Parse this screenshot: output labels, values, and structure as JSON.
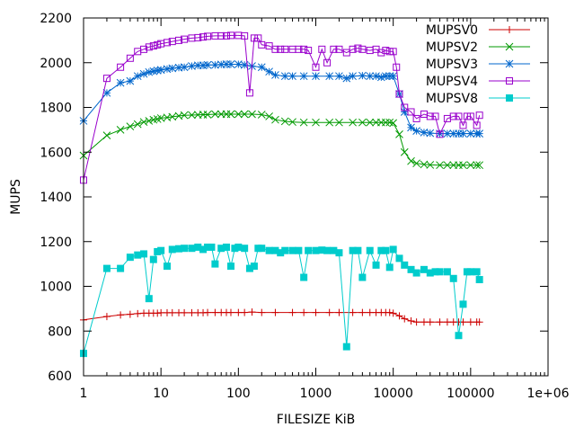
{
  "chart_data": {
    "type": "line",
    "title": "",
    "xlabel": "FILESIZE KiB",
    "ylabel": "MUPS",
    "xscale": "log",
    "xlim": [
      1,
      1000000
    ],
    "ylim": [
      600,
      2200
    ],
    "x_ticks": [
      1,
      10,
      100,
      1000,
      10000,
      100000,
      1000000
    ],
    "x_tick_labels": [
      "1",
      "10",
      "100",
      "1000",
      "10000",
      "100000",
      "1e+06"
    ],
    "y_ticks": [
      600,
      800,
      1000,
      1200,
      1400,
      1600,
      1800,
      2000,
      2200
    ],
    "y_tick_labels": [
      "600",
      "800",
      "1000",
      "1200",
      "1400",
      "1600",
      "1800",
      "2000",
      "2200"
    ],
    "grid": false,
    "legend_position": "top-right",
    "series": [
      {
        "name": "MUPSV0",
        "color": "#cc0000",
        "marker": "plus",
        "x": [
          1,
          2,
          3,
          4,
          5,
          6,
          7,
          8,
          9,
          10,
          12,
          14,
          17,
          20,
          25,
          30,
          35,
          40,
          50,
          60,
          70,
          80,
          100,
          120,
          150,
          200,
          300,
          500,
          700,
          1000,
          1500,
          2000,
          3000,
          4000,
          5000,
          6000,
          7000,
          8000,
          9000,
          10000,
          12000,
          14000,
          17000,
          20000,
          25000,
          30000,
          40000,
          50000,
          60000,
          70000,
          80000,
          100000,
          120000,
          130000
        ],
        "y": [
          850,
          865,
          872,
          875,
          878,
          880,
          880,
          880,
          880,
          882,
          882,
          882,
          882,
          882,
          882,
          882,
          882,
          883,
          883,
          883,
          883,
          883,
          883,
          883,
          885,
          883,
          883,
          883,
          883,
          883,
          883,
          883,
          883,
          883,
          883,
          883,
          883,
          883,
          883,
          880,
          868,
          855,
          845,
          840,
          840,
          840,
          840,
          840,
          840,
          840,
          840,
          840,
          840,
          840
        ]
      },
      {
        "name": "MUPSV2",
        "color": "#009900",
        "marker": "cross",
        "x": [
          1,
          2,
          3,
          4,
          5,
          6,
          7,
          8,
          9,
          10,
          12,
          14,
          17,
          20,
          25,
          30,
          35,
          40,
          50,
          60,
          70,
          80,
          100,
          120,
          150,
          200,
          250,
          300,
          400,
          500,
          700,
          1000,
          1500,
          2000,
          3000,
          4000,
          5000,
          6000,
          7000,
          8000,
          9000,
          10000,
          12000,
          14000,
          17000,
          20000,
          25000,
          30000,
          40000,
          50000,
          60000,
          70000,
          80000,
          100000,
          120000,
          130000
        ],
        "y": [
          1585,
          1675,
          1700,
          1715,
          1725,
          1735,
          1740,
          1745,
          1748,
          1752,
          1755,
          1758,
          1762,
          1765,
          1766,
          1767,
          1768,
          1768,
          1770,
          1770,
          1770,
          1770,
          1770,
          1770,
          1770,
          1768,
          1760,
          1745,
          1738,
          1735,
          1733,
          1733,
          1733,
          1733,
          1733,
          1733,
          1733,
          1733,
          1733,
          1733,
          1733,
          1730,
          1680,
          1600,
          1560,
          1550,
          1545,
          1543,
          1542,
          1542,
          1542,
          1542,
          1542,
          1542,
          1542,
          1542
        ]
      },
      {
        "name": "MUPSV3",
        "color": "#0066cc",
        "marker": "star",
        "x": [
          1,
          2,
          3,
          4,
          5,
          6,
          7,
          8,
          9,
          10,
          12,
          14,
          17,
          20,
          25,
          30,
          35,
          40,
          50,
          60,
          70,
          80,
          100,
          120,
          150,
          200,
          250,
          300,
          400,
          500,
          700,
          1000,
          1500,
          2000,
          2500,
          3000,
          4000,
          5000,
          6000,
          7000,
          8000,
          9000,
          10000,
          12000,
          14000,
          17000,
          20000,
          25000,
          30000,
          40000,
          50000,
          60000,
          70000,
          80000,
          100000,
          120000,
          130000
        ],
        "y": [
          1740,
          1865,
          1910,
          1918,
          1940,
          1950,
          1958,
          1962,
          1965,
          1968,
          1972,
          1975,
          1978,
          1980,
          1985,
          1988,
          1988,
          1990,
          1990,
          1992,
          1993,
          1993,
          1993,
          1990,
          1985,
          1980,
          1960,
          1945,
          1940,
          1940,
          1940,
          1940,
          1940,
          1940,
          1930,
          1940,
          1942,
          1940,
          1940,
          1935,
          1940,
          1940,
          1940,
          1860,
          1780,
          1710,
          1695,
          1688,
          1685,
          1683,
          1683,
          1683,
          1683,
          1683,
          1683,
          1683,
          1683
        ]
      },
      {
        "name": "MUPSV4",
        "color": "#9900cc",
        "marker": "square",
        "x": [
          1,
          2,
          3,
          4,
          5,
          6,
          7,
          8,
          9,
          10,
          12,
          14,
          17,
          20,
          25,
          30,
          35,
          40,
          50,
          60,
          70,
          80,
          100,
          120,
          140,
          160,
          180,
          200,
          250,
          300,
          350,
          400,
          500,
          600,
          700,
          800,
          1000,
          1200,
          1400,
          1700,
          2000,
          2500,
          3000,
          3500,
          4000,
          5000,
          6000,
          7000,
          8000,
          9000,
          10000,
          11000,
          12000,
          14000,
          17000,
          20000,
          25000,
          30000,
          35000,
          40000,
          50000,
          60000,
          70000,
          80000,
          90000,
          100000,
          120000,
          130000
        ],
        "y": [
          1475,
          1930,
          1980,
          2020,
          2050,
          2060,
          2070,
          2075,
          2080,
          2085,
          2090,
          2095,
          2100,
          2105,
          2110,
          2112,
          2115,
          2118,
          2120,
          2120,
          2120,
          2122,
          2122,
          2120,
          1865,
          2110,
          2110,
          2080,
          2075,
          2060,
          2060,
          2060,
          2060,
          2060,
          2060,
          2055,
          1980,
          2060,
          2000,
          2060,
          2060,
          2045,
          2060,
          2065,
          2060,
          2055,
          2060,
          2045,
          2055,
          2050,
          2050,
          1980,
          1860,
          1800,
          1780,
          1750,
          1770,
          1760,
          1760,
          1680,
          1750,
          1760,
          1760,
          1720,
          1760,
          1760,
          1720,
          1765
        ]
      },
      {
        "name": "MUPSV8",
        "color": "#00cccc",
        "marker": "filled-square",
        "x": [
          1,
          2,
          3,
          4,
          5,
          6,
          7,
          8,
          9,
          10,
          12,
          14,
          17,
          20,
          25,
          30,
          35,
          40,
          45,
          50,
          60,
          70,
          80,
          90,
          100,
          120,
          140,
          160,
          180,
          200,
          250,
          300,
          350,
          400,
          500,
          600,
          700,
          800,
          1000,
          1200,
          1400,
          1700,
          2000,
          2500,
          3000,
          3500,
          4000,
          5000,
          6000,
          7000,
          8000,
          9000,
          10000,
          12000,
          14000,
          17000,
          20000,
          25000,
          30000,
          35000,
          40000,
          50000,
          60000,
          70000,
          80000,
          90000,
          100000,
          120000,
          130000
        ],
        "y": [
          700,
          1080,
          1080,
          1130,
          1140,
          1145,
          945,
          1120,
          1155,
          1160,
          1090,
          1165,
          1168,
          1170,
          1170,
          1175,
          1165,
          1175,
          1175,
          1100,
          1170,
          1175,
          1090,
          1170,
          1175,
          1170,
          1080,
          1090,
          1170,
          1170,
          1160,
          1160,
          1150,
          1160,
          1160,
          1160,
          1040,
          1160,
          1160,
          1162,
          1160,
          1160,
          1150,
          730,
          1160,
          1160,
          1040,
          1160,
          1095,
          1160,
          1160,
          1085,
          1165,
          1125,
          1095,
          1075,
          1060,
          1075,
          1060,
          1065,
          1065,
          1065,
          1035,
          780,
          920,
          1065,
          1065,
          1065,
          1030
        ]
      }
    ]
  }
}
